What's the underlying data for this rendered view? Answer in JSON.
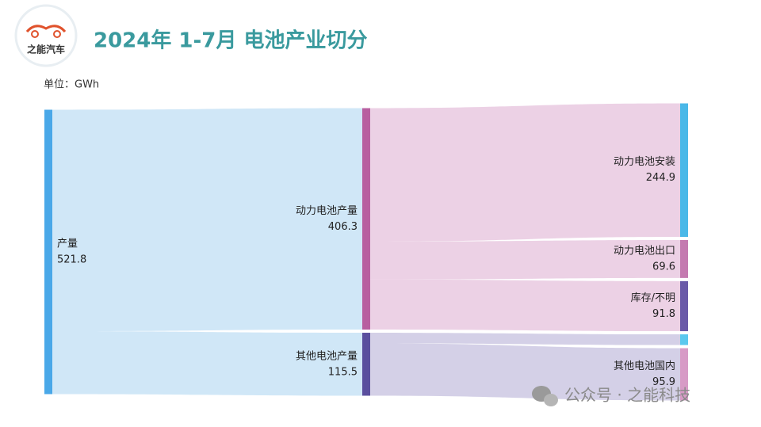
{
  "logo": "之能汽车",
  "watermark": "公众号 · 之能科技",
  "chart_data": {
    "type": "sankey",
    "title": "2024年 1-7月 电池产业切分",
    "unit": "单位：GWh",
    "nodes": [
      {
        "name": "产量",
        "value": 521.8,
        "color": "#4aa8e8",
        "link_color": "#cde6f7"
      },
      {
        "name": "动力电池产量",
        "value": 406.3,
        "color": "#b85fa0",
        "link_color": "#ebcfe4"
      },
      {
        "name": "其他电池产量",
        "value": 115.5,
        "color": "#5a4f9e",
        "link_color": "#d2cee6"
      },
      {
        "name": "动力电池安装",
        "value": 244.9,
        "color": "#4ab8e8"
      },
      {
        "name": "动力电池出口",
        "value": 69.6,
        "color": "#c47ab0"
      },
      {
        "name": "库存/不明",
        "value": 91.8,
        "color": "#6a5aa8"
      },
      {
        "name": null,
        "value": 19.6,
        "color": "#5bc8ee"
      },
      {
        "name": "其他电池国内",
        "value": 95.9,
        "color": "#d79bc6"
      }
    ],
    "links": [
      {
        "source": 0,
        "target": 1,
        "value": 406.3
      },
      {
        "source": 0,
        "target": 2,
        "value": 115.5
      },
      {
        "source": 1,
        "target": 3,
        "value": 244.9
      },
      {
        "source": 1,
        "target": 4,
        "value": 69.6
      },
      {
        "source": 1,
        "target": 5,
        "value": 91.8
      },
      {
        "source": 2,
        "target": 6,
        "value": 19.6
      },
      {
        "source": 2,
        "target": 7,
        "value": 95.9
      }
    ]
  }
}
